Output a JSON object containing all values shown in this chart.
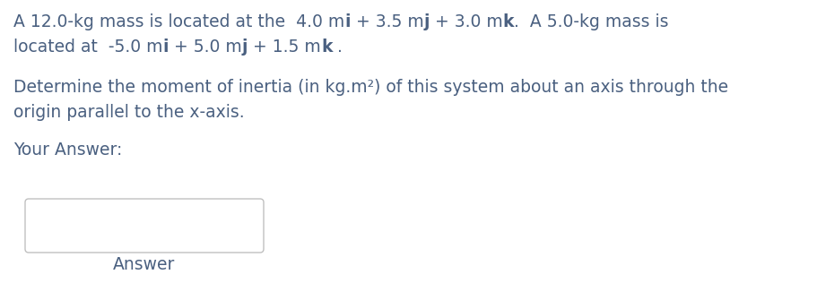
{
  "bg_color": "#ffffff",
  "text_color": "#4a6080",
  "line1_parts": [
    {
      "text": "A 12.0-kg mass is located at the  4.0 m",
      "style": "normal"
    },
    {
      "text": "i",
      "style": "bold"
    },
    {
      "text": " + 3.5 m",
      "style": "normal"
    },
    {
      "text": "j",
      "style": "bold"
    },
    {
      "text": " + 3.0 m",
      "style": "normal"
    },
    {
      "text": "k",
      "style": "bold"
    },
    {
      "text": ".  A 5.0-kg mass is",
      "style": "normal"
    }
  ],
  "line2_parts": [
    {
      "text": "located at  -5.0 m",
      "style": "normal"
    },
    {
      "text": "i",
      "style": "bold"
    },
    {
      "text": " + 5.0 m",
      "style": "normal"
    },
    {
      "text": "j",
      "style": "bold"
    },
    {
      "text": " + 1.5 m",
      "style": "normal"
    },
    {
      "text": "k",
      "style": "bold"
    },
    {
      "text": " .",
      "style": "normal"
    }
  ],
  "line3": "Determine the moment of inertia (in kg.m²) of this system about an axis through the",
  "line4": "origin parallel to the x-axis.",
  "line5": "Your Answer:",
  "answer_label": "Answer",
  "font_size": 13.5,
  "box_edge_color": "#c0c0c0",
  "box_face_color": "#ffffff"
}
